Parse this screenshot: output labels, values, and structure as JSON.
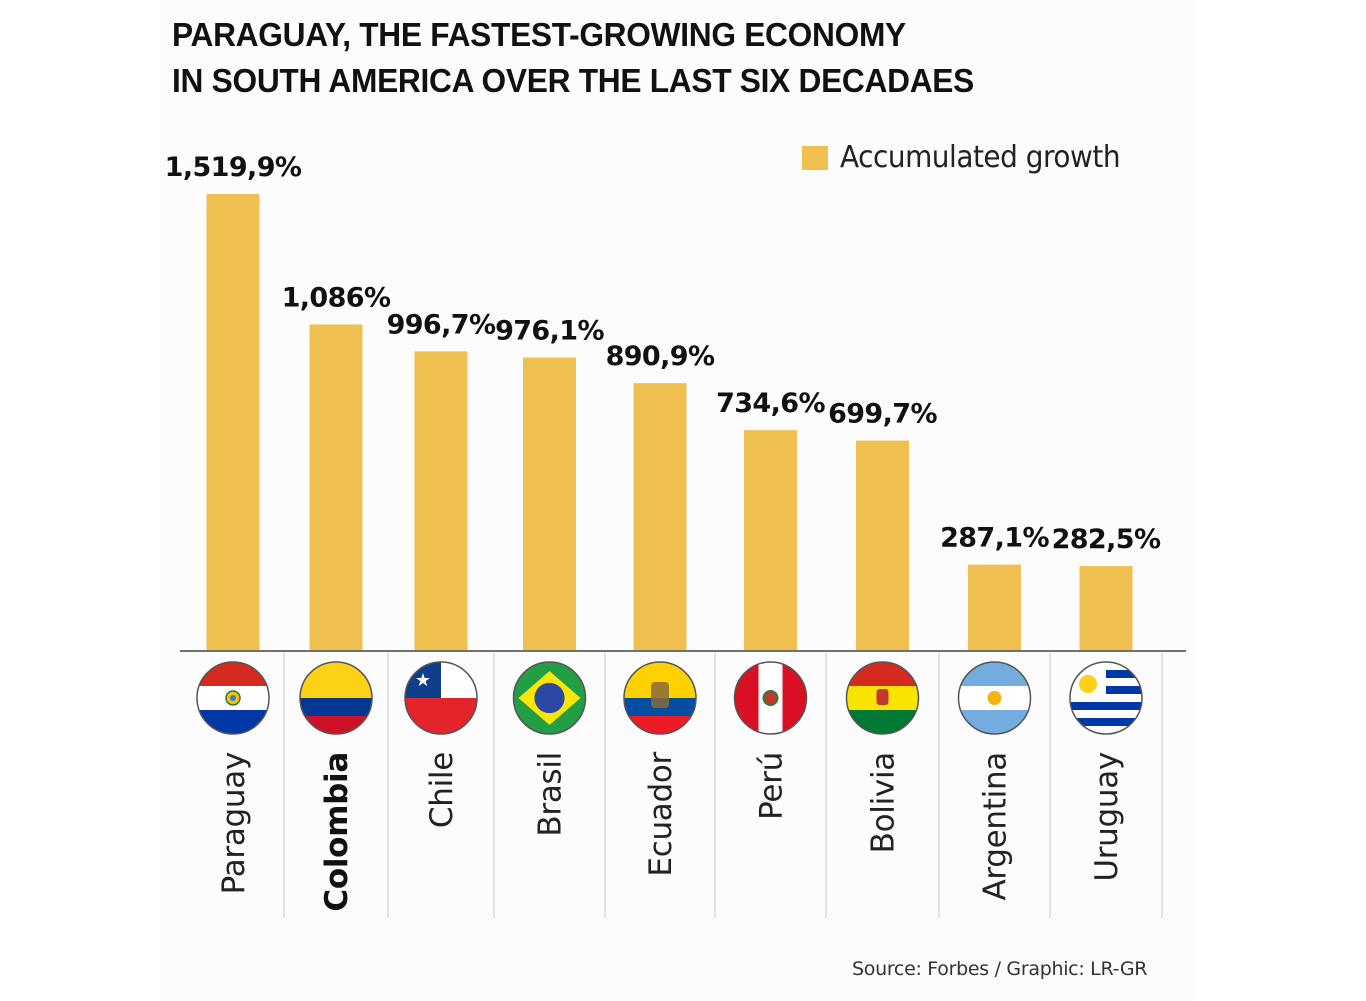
{
  "chart_data": {
    "type": "bar",
    "title": "PARAGUAY, THE FASTEST-GROWING ECONOMY IN SOUTH AMERICA OVER THE LAST SIX DECADAES",
    "title_lines": [
      "PARAGUAY, THE FASTEST-GROWING ECONOMY",
      "IN SOUTH AMERICA OVER THE LAST SIX DECADAES"
    ],
    "xlabel": "",
    "ylabel": "",
    "categories": [
      "Paraguay",
      "Colombia",
      "Chile",
      "Brasil",
      "Ecuador",
      "Perú",
      "Bolivia",
      "Argentina",
      "Uruguay"
    ],
    "highlighted_category": "Colombia",
    "series": [
      {
        "name": "Accumulated growth",
        "color": "#efc050",
        "values": [
          1519.9,
          1086,
          996.7,
          976.1,
          890.9,
          734.6,
          699.7,
          287.1,
          282.5
        ],
        "labels": [
          "1,519,9%",
          "1,086%",
          "996,7%",
          "976,1%",
          "890,9%",
          "734,6%",
          "699,7%",
          "287,1%",
          "282,5%"
        ]
      }
    ],
    "flags": [
      "paraguay-flag",
      "colombia-flag",
      "chile-flag",
      "brazil-flag",
      "ecuador-flag",
      "peru-flag",
      "bolivia-flag",
      "argentina-flag",
      "uruguay-flag"
    ],
    "legend": {
      "label": "Accumulated growth",
      "position": "top-right"
    },
    "grid": false,
    "y_axis_visible": false,
    "source": "Source: Forbes / Graphic: LR-GR"
  }
}
